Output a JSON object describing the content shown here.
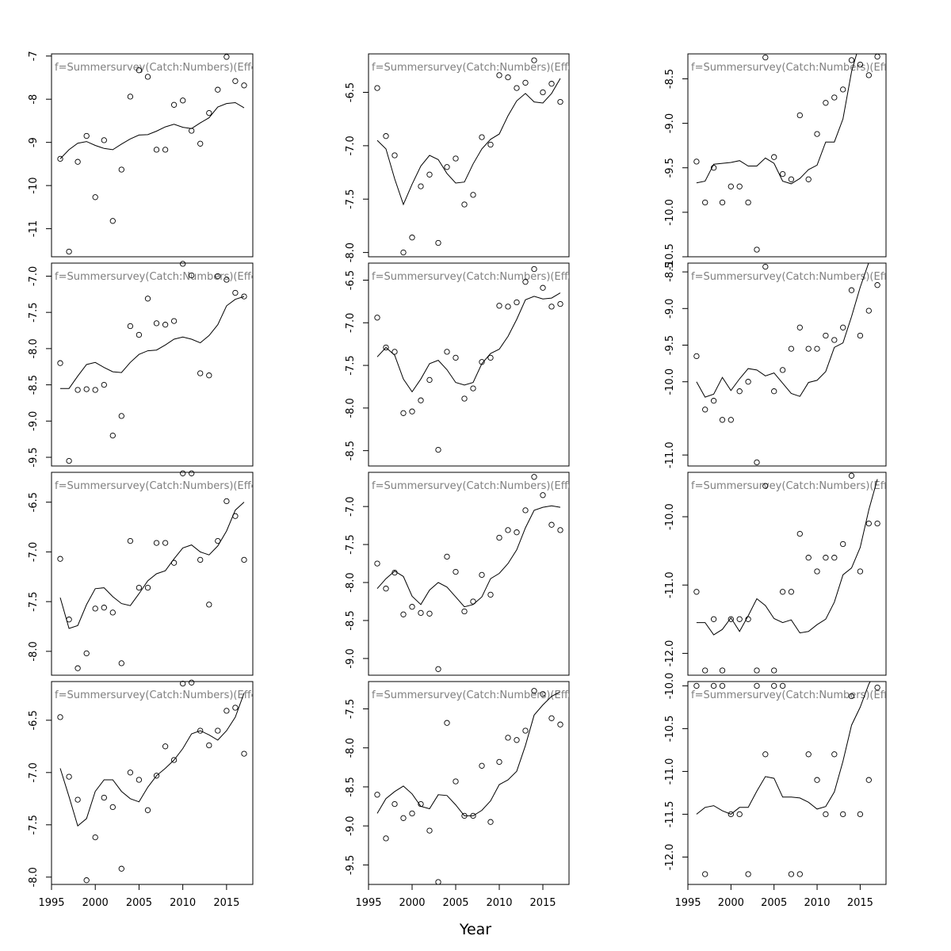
{
  "figure": {
    "xlabel": "Year",
    "panel_label": "f=Summersurvey(Catch:Numbers)(Effort)",
    "rows": 4,
    "cols": 3
  },
  "chart_data": [
    {
      "type": "scatter",
      "x_range": [
        1995,
        2018
      ],
      "ylim": [
        -11.65,
        -6.95
      ],
      "y_ticks": [
        -11,
        -10,
        -9,
        -8,
        -7
      ],
      "y_tick_labels": [
        "-11",
        "-10",
        "-9",
        "-8",
        "-7"
      ],
      "x": [
        1996,
        1997,
        1998,
        1999,
        2000,
        2001,
        2002,
        2003,
        2004,
        2005,
        2006,
        2007,
        2008,
        2009,
        2010,
        2011,
        2012,
        2013,
        2014,
        2015,
        2016,
        2017
      ],
      "points": [
        -9.38,
        -11.53,
        -9.45,
        -8.85,
        -10.27,
        -8.95,
        -10.82,
        -9.63,
        -7.94,
        -7.33,
        -7.48,
        -9.17,
        -9.17,
        -8.13,
        -8.03,
        -8.73,
        -9.03,
        -8.32,
        -7.78,
        -7.02,
        -7.58,
        -7.68
      ],
      "fit": [
        -9.38,
        -9.17,
        -9.02,
        -8.98,
        -9.07,
        -9.14,
        -9.17,
        -9.04,
        -8.92,
        -8.83,
        -8.82,
        -8.74,
        -8.64,
        -8.58,
        -8.65,
        -8.68,
        -8.55,
        -8.43,
        -8.18,
        -8.1,
        -8.08,
        -8.2
      ]
    },
    {
      "type": "scatter",
      "x_range": [
        1995,
        2018
      ],
      "ylim": [
        -8.04,
        -6.14
      ],
      "y_ticks": [
        -8.0,
        -7.5,
        -7.0,
        -6.5
      ],
      "y_tick_labels": [
        "-8.0",
        "-7.5",
        "-7.0",
        "-6.5"
      ],
      "x": [
        1996,
        1997,
        1998,
        1999,
        2000,
        2001,
        2002,
        2003,
        2004,
        2005,
        2006,
        2007,
        2008,
        2009,
        2010,
        2011,
        2012,
        2013,
        2014,
        2015,
        2016,
        2017
      ],
      "points": [
        -6.46,
        -6.91,
        -7.09,
        -8.0,
        -7.86,
        -7.38,
        -7.27,
        -7.91,
        -7.2,
        -7.12,
        -7.55,
        -7.46,
        -6.92,
        -6.99,
        -6.34,
        -6.36,
        -6.46,
        -6.41,
        -6.2,
        -6.5,
        -6.42,
        -6.59
      ],
      "fit": [
        -6.95,
        -7.03,
        -7.31,
        -7.55,
        -7.36,
        -7.19,
        -7.09,
        -7.13,
        -7.26,
        -7.35,
        -7.34,
        -7.17,
        -7.03,
        -6.94,
        -6.89,
        -6.72,
        -6.58,
        -6.51,
        -6.59,
        -6.6,
        -6.51,
        -6.37
      ]
    },
    {
      "type": "scatter",
      "x_range": [
        1995,
        2018
      ],
      "ylim": [
        -10.5,
        -8.22
      ],
      "y_ticks": [
        -10.5,
        -10.0,
        -9.5,
        -9.0,
        -8.5
      ],
      "y_tick_labels": [
        "-10.5",
        "-10.0",
        "-9.5",
        "-9.0",
        "-8.5"
      ],
      "x": [
        1996,
        1997,
        1998,
        1999,
        2000,
        2001,
        2002,
        2003,
        2004,
        2005,
        2006,
        2007,
        2008,
        2009,
        2010,
        2011,
        2012,
        2013,
        2014,
        2015,
        2016,
        2017
      ],
      "points": [
        -9.43,
        -9.89,
        -9.5,
        -9.89,
        -9.71,
        -9.71,
        -9.89,
        -10.42,
        -8.26,
        -9.38,
        -9.57,
        -9.63,
        -8.91,
        -9.63,
        -9.12,
        -8.77,
        -8.71,
        -8.62,
        -8.29,
        -8.34,
        -8.46,
        -8.25
      ],
      "fit": [
        -9.67,
        -9.65,
        -9.46,
        -9.45,
        -9.44,
        -9.42,
        -9.48,
        -9.48,
        -9.39,
        -9.45,
        -9.65,
        -9.68,
        -9.62,
        -9.52,
        -9.47,
        -9.21,
        -9.21,
        -8.95,
        -8.42,
        -8.08,
        -7.91,
        -7.83
      ]
    },
    {
      "type": "scatter",
      "x_range": [
        1995,
        2018
      ],
      "ylim": [
        -9.62,
        -6.82
      ],
      "y_ticks": [
        -9.5,
        -9.0,
        -8.5,
        -8.0,
        -7.5,
        -7.0
      ],
      "y_tick_labels": [
        "-9.5",
        "-9.0",
        "-8.5",
        "-8.0",
        "-7.5",
        "-7.0"
      ],
      "x": [
        1996,
        1997,
        1998,
        1999,
        2000,
        2001,
        2002,
        2003,
        2004,
        2005,
        2006,
        2007,
        2008,
        2009,
        2010,
        2011,
        2012,
        2013,
        2014,
        2015,
        2016,
        2017
      ],
      "points": [
        -8.2,
        -9.55,
        -8.57,
        -8.56,
        -8.57,
        -8.5,
        -9.2,
        -8.93,
        -7.69,
        -7.81,
        -7.31,
        -7.65,
        -7.67,
        -7.62,
        -6.83,
        -6.99,
        -8.34,
        -8.37,
        -7.0,
        -7.05,
        -7.23,
        -7.28
      ],
      "fit": [
        -8.55,
        -8.55,
        -8.38,
        -8.22,
        -8.19,
        -8.26,
        -8.32,
        -8.33,
        -8.19,
        -8.08,
        -8.03,
        -8.02,
        -7.95,
        -7.87,
        -7.84,
        -7.87,
        -7.92,
        -7.82,
        -7.67,
        -7.41,
        -7.32,
        -7.28
      ]
    },
    {
      "type": "scatter",
      "x_range": [
        1995,
        2018
      ],
      "ylim": [
        -8.68,
        -6.3
      ],
      "y_ticks": [
        -8.5,
        -8.0,
        -7.5,
        -7.0,
        -6.5
      ],
      "y_tick_labels": [
        "-8.5",
        "-8.0",
        "-7.5",
        "-7.0",
        "-6.5"
      ],
      "x": [
        1996,
        1997,
        1998,
        1999,
        2000,
        2001,
        2002,
        2003,
        2004,
        2005,
        2006,
        2007,
        2008,
        2009,
        2010,
        2011,
        2012,
        2013,
        2014,
        2015,
        2016,
        2017
      ],
      "points": [
        -6.94,
        -7.29,
        -7.34,
        -8.06,
        -8.04,
        -7.91,
        -7.67,
        -8.49,
        -7.34,
        -7.41,
        -7.89,
        -7.77,
        -7.46,
        -7.41,
        -6.8,
        -6.81,
        -6.76,
        -6.52,
        -6.37,
        -6.59,
        -6.81,
        -6.78
      ],
      "fit": [
        -7.4,
        -7.29,
        -7.38,
        -7.66,
        -7.81,
        -7.66,
        -7.48,
        -7.44,
        -7.55,
        -7.7,
        -7.73,
        -7.7,
        -7.48,
        -7.36,
        -7.31,
        -7.16,
        -6.96,
        -6.73,
        -6.69,
        -6.72,
        -6.71,
        -6.65
      ]
    },
    {
      "type": "scatter",
      "x_range": [
        1995,
        2018
      ],
      "ylim": [
        -11.15,
        -8.38
      ],
      "y_ticks": [
        -11.0,
        -10.0,
        -9.5,
        -9.0,
        -8.5
      ],
      "y_tick_labels": [
        "-11.0",
        "-10.0",
        "-9.5",
        "-9.0",
        "-8.5"
      ],
      "x": [
        1996,
        1997,
        1998,
        1999,
        2000,
        2001,
        2002,
        2003,
        2004,
        2005,
        2006,
        2007,
        2008,
        2009,
        2010,
        2011,
        2012,
        2013,
        2014,
        2015,
        2016,
        2017
      ],
      "points": [
        -9.65,
        -10.38,
        -10.26,
        -10.52,
        -10.52,
        -10.13,
        -10.0,
        -11.1,
        -8.43,
        -10.13,
        -9.84,
        -9.55,
        -9.26,
        -9.55,
        -9.55,
        -9.37,
        -9.43,
        -9.26,
        -8.75,
        -9.37,
        -9.03,
        -8.68
      ],
      "fit": [
        -10.0,
        -10.21,
        -10.17,
        -9.94,
        -10.12,
        -9.96,
        -9.82,
        -9.84,
        -9.92,
        -9.88,
        -10.02,
        -10.16,
        -10.2,
        -10.01,
        -9.98,
        -9.86,
        -9.53,
        -9.47,
        -9.11,
        -8.71,
        -8.37,
        -8.2
      ]
    },
    {
      "type": "scatter",
      "x_range": [
        1995,
        2018
      ],
      "ylim": [
        -8.24,
        -6.2
      ],
      "y_ticks": [
        -8.0,
        -7.5,
        -7.0,
        -6.5
      ],
      "y_tick_labels": [
        "-8.0",
        "-7.5",
        "-7.0",
        "-6.5"
      ],
      "x": [
        1996,
        1997,
        1998,
        1999,
        2000,
        2001,
        2002,
        2003,
        2004,
        2005,
        2006,
        2007,
        2008,
        2009,
        2010,
        2011,
        2012,
        2013,
        2014,
        2015,
        2016,
        2017
      ],
      "points": [
        -7.07,
        -7.68,
        -8.17,
        -8.02,
        -7.57,
        -7.56,
        -7.61,
        -8.12,
        -6.89,
        -7.36,
        -7.36,
        -6.91,
        -6.91,
        -7.11,
        -6.21,
        -6.21,
        -7.08,
        -7.53,
        -6.89,
        -6.49,
        -6.64,
        -7.08
      ],
      "fit": [
        -7.46,
        -7.77,
        -7.74,
        -7.53,
        -7.37,
        -7.36,
        -7.45,
        -7.52,
        -7.54,
        -7.42,
        -7.29,
        -7.22,
        -7.19,
        -7.07,
        -6.96,
        -6.93,
        -7.0,
        -7.03,
        -6.94,
        -6.79,
        -6.58,
        -6.5
      ]
    },
    {
      "type": "scatter",
      "x_range": [
        1995,
        2018
      ],
      "ylim": [
        -9.22,
        -6.55
      ],
      "y_ticks": [
        -9.0,
        -8.5,
        -8.0,
        -7.5,
        -7.0
      ],
      "y_tick_labels": [
        "-9.0",
        "-8.5",
        "-8.0",
        "-7.5",
        "-7.0"
      ],
      "x": [
        1996,
        1997,
        1998,
        1999,
        2000,
        2001,
        2002,
        2003,
        2004,
        2005,
        2006,
        2007,
        2008,
        2009,
        2010,
        2011,
        2012,
        2013,
        2014,
        2015,
        2016,
        2017
      ],
      "points": [
        -7.75,
        -8.08,
        -7.87,
        -8.42,
        -8.32,
        -8.4,
        -8.41,
        -9.14,
        -7.66,
        -7.86,
        -8.38,
        -8.25,
        -7.9,
        -8.16,
        -7.41,
        -7.31,
        -7.34,
        -7.05,
        -6.61,
        -6.85,
        -7.24,
        -7.31
      ],
      "fit": [
        -8.08,
        -7.95,
        -7.85,
        -7.92,
        -8.18,
        -8.29,
        -8.1,
        -8.0,
        -8.06,
        -8.19,
        -8.32,
        -8.29,
        -8.19,
        -7.95,
        -7.88,
        -7.75,
        -7.57,
        -7.28,
        -7.05,
        -7.01,
        -6.99,
        -7.01
      ]
    },
    {
      "type": "scatter",
      "x_range": [
        1995,
        2018
      ],
      "ylim": [
        -12.32,
        -9.35
      ],
      "y_ticks": [
        -12.0,
        -11.0,
        -10.0
      ],
      "y_tick_labels": [
        "-12.0",
        "-11.0",
        "-10.0"
      ],
      "x": [
        1996,
        1997,
        1998,
        1999,
        2000,
        2001,
        2002,
        2003,
        2004,
        2005,
        2006,
        2007,
        2008,
        2009,
        2010,
        2011,
        2012,
        2013,
        2014,
        2015,
        2016,
        2017
      ],
      "points": [
        -11.1,
        -12.25,
        -11.5,
        -12.25,
        -11.5,
        -11.5,
        -11.5,
        -12.25,
        -9.55,
        -12.25,
        -11.1,
        -11.1,
        -10.25,
        -10.6,
        -10.8,
        -10.6,
        -10.6,
        -10.4,
        -9.4,
        -10.8,
        -10.1,
        -10.1
      ],
      "fit": [
        -11.55,
        -11.55,
        -11.73,
        -11.65,
        -11.48,
        -11.68,
        -11.45,
        -11.2,
        -11.3,
        -11.49,
        -11.55,
        -11.51,
        -11.7,
        -11.68,
        -11.58,
        -11.5,
        -11.25,
        -10.85,
        -10.75,
        -10.45,
        -9.9,
        -9.45
      ]
    },
    {
      "type": "scatter",
      "x_range": [
        1995,
        2018
      ],
      "ylim": [
        -8.07,
        -6.13
      ],
      "y_ticks": [
        -8.0,
        -7.5,
        -7.0,
        -6.5
      ],
      "y_tick_labels": [
        "-8.0",
        "-7.5",
        "-7.0",
        "-6.5"
      ],
      "x": [
        1996,
        1997,
        1998,
        1999,
        2000,
        2001,
        2002,
        2003,
        2004,
        2005,
        2006,
        2007,
        2008,
        2009,
        2010,
        2011,
        2012,
        2013,
        2014,
        2015,
        2016,
        2017
      ],
      "points": [
        -6.47,
        -7.04,
        -7.26,
        -8.03,
        -7.62,
        -7.24,
        -7.33,
        -7.92,
        -7.0,
        -7.07,
        -7.36,
        -7.03,
        -6.75,
        -6.88,
        -6.15,
        -6.14,
        -6.6,
        -6.74,
        -6.6,
        -6.41,
        -6.38,
        -6.82
      ],
      "fit": [
        -6.96,
        -7.23,
        -7.51,
        -7.44,
        -7.18,
        -7.07,
        -7.07,
        -7.18,
        -7.25,
        -7.28,
        -7.14,
        -7.03,
        -6.96,
        -6.88,
        -6.77,
        -6.63,
        -6.6,
        -6.64,
        -6.69,
        -6.6,
        -6.47,
        -6.24
      ]
    },
    {
      "type": "scatter",
      "x_range": [
        1995,
        2018
      ],
      "ylim": [
        -9.75,
        -7.15
      ],
      "y_ticks": [
        -9.5,
        -9.0,
        -8.5,
        -8.0,
        -7.5
      ],
      "y_tick_labels": [
        "-9.5",
        "-9.0",
        "-8.5",
        "-8.0",
        "-7.5"
      ],
      "x": [
        1996,
        1997,
        1998,
        1999,
        2000,
        2001,
        2002,
        2003,
        2004,
        2005,
        2006,
        2007,
        2008,
        2009,
        2010,
        2011,
        2012,
        2013,
        2014,
        2015,
        2016,
        2017
      ],
      "points": [
        -8.6,
        -9.16,
        -8.72,
        -8.9,
        -8.84,
        -8.72,
        -9.06,
        -9.72,
        -7.68,
        -8.43,
        -8.87,
        -8.87,
        -8.23,
        -8.95,
        -8.18,
        -7.87,
        -7.9,
        -7.78,
        -7.27,
        -7.31,
        -7.62,
        -7.7
      ],
      "fit": [
        -8.84,
        -8.65,
        -8.56,
        -8.49,
        -8.59,
        -8.75,
        -8.78,
        -8.6,
        -8.61,
        -8.73,
        -8.87,
        -8.87,
        -8.8,
        -8.68,
        -8.47,
        -8.41,
        -8.3,
        -7.97,
        -7.58,
        -7.45,
        -7.34,
        -7.28
      ]
    },
    {
      "type": "scatter",
      "x_range": [
        1995,
        2018
      ],
      "ylim": [
        -12.32,
        -9.95
      ],
      "y_ticks": [
        -12.0,
        -11.5,
        -11.0,
        -10.5,
        -10.0
      ],
      "y_tick_labels": [
        "-12.0",
        "-11.5",
        "-11.0",
        "-10.5",
        "-10.0"
      ],
      "x": [
        1996,
        1997,
        1998,
        1999,
        2000,
        2001,
        2002,
        2003,
        2004,
        2005,
        2006,
        2007,
        2008,
        2009,
        2010,
        2011,
        2012,
        2013,
        2014,
        2015,
        2016,
        2017
      ],
      "points": [
        -10.0,
        -12.2,
        -10.0,
        -10.0,
        -11.5,
        -11.5,
        -12.2,
        -10.0,
        -10.8,
        -10.0,
        -10.0,
        -12.2,
        -12.2,
        -10.8,
        -11.1,
        -11.5,
        -10.8,
        -11.5,
        -10.12,
        -11.5,
        -11.1,
        -10.02
      ],
      "fit": [
        -11.5,
        -11.42,
        -11.4,
        -11.46,
        -11.5,
        -11.42,
        -11.42,
        -11.23,
        -11.06,
        -11.08,
        -11.3,
        -11.3,
        -11.31,
        -11.36,
        -11.44,
        -11.41,
        -11.24,
        -10.88,
        -10.46,
        -10.25,
        -9.98,
        -9.8
      ]
    }
  ],
  "x_axis": {
    "ticks": [
      1995,
      2000,
      2005,
      2010,
      2015
    ],
    "tick_labels": [
      "1995",
      "2000",
      "2005",
      "2010",
      "2015"
    ]
  },
  "colors": {
    "axis": "#000000",
    "panel_label": "#7f7f7f",
    "points": "#000000",
    "line": "#000000"
  }
}
